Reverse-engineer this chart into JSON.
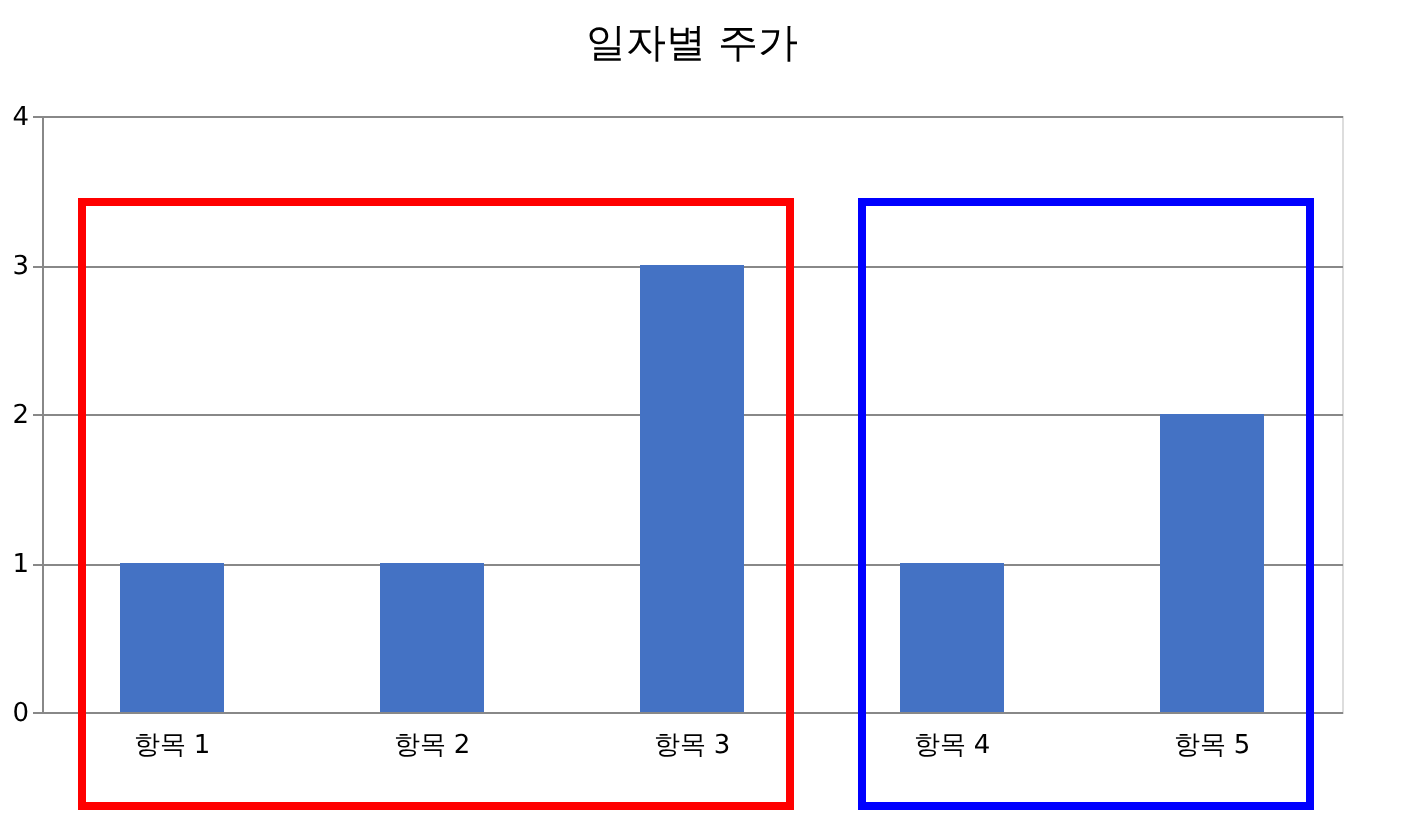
{
  "chart_data": {
    "type": "bar",
    "title": "일자별 주가",
    "categories": [
      "항목 1",
      "항목 2",
      "항목 3",
      "항목 4",
      "항목 5"
    ],
    "values": [
      1,
      1,
      3,
      1,
      2
    ],
    "color": "#4472c4",
    "ylim": [
      0,
      4
    ],
    "yticks": [
      0,
      1,
      2,
      3,
      4
    ],
    "grid": "y"
  }
}
